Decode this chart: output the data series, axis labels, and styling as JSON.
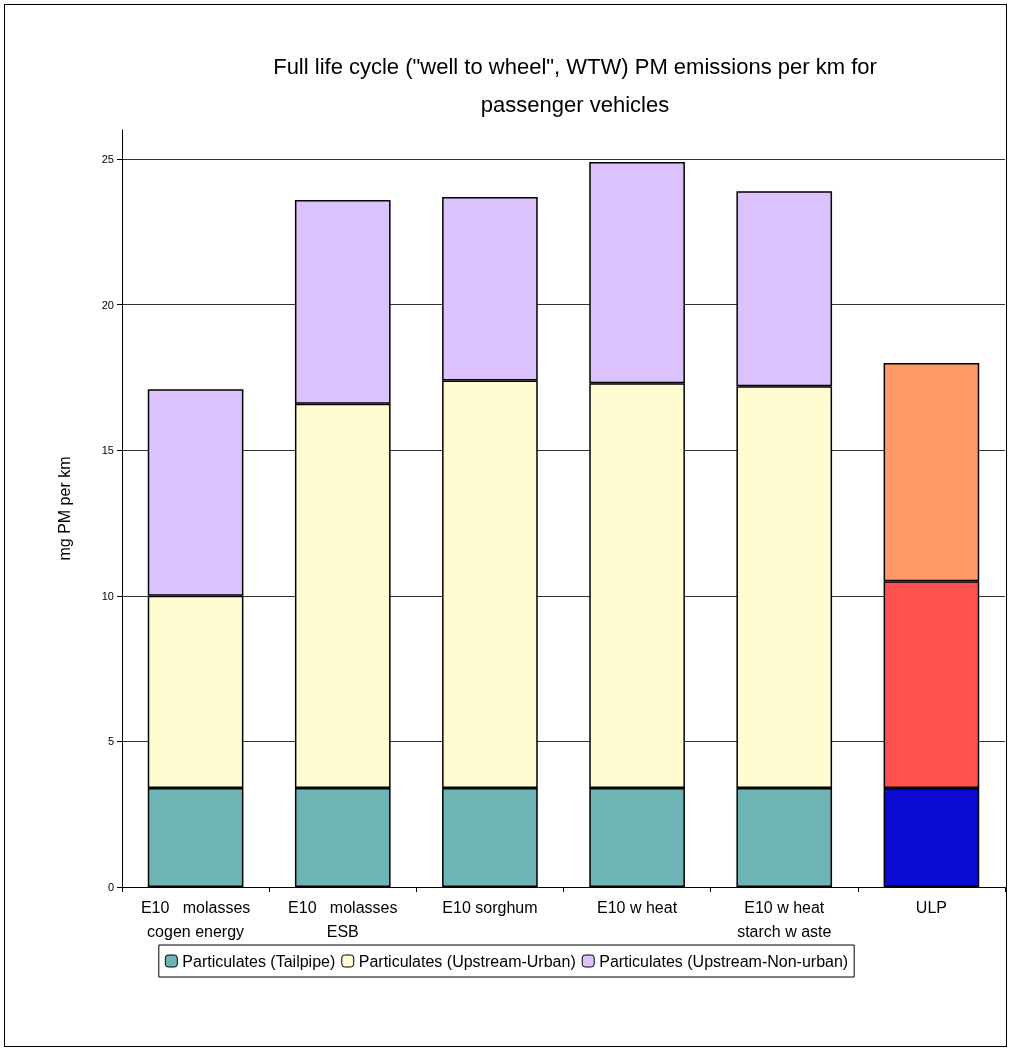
{
  "chart_data": {
    "type": "bar",
    "stacked": true,
    "title": "Full life cycle (\"well to wheel\", WTW) PM emissions per km for passenger vehicles",
    "ylabel": "mg PM per km",
    "categories": [
      "E10   molasses cogen energy",
      "E10   molasses ESB",
      "E10 sorghum",
      "E10 w heat",
      "E10 w heat starch w aste",
      "ULP"
    ],
    "series": [
      {
        "name": "Particulates (Tailpipe)",
        "color": "#6fb4b4",
        "colors": [
          "#6fb4b4",
          "#6fb4b4",
          "#6fb4b4",
          "#6fb4b4",
          "#6fb4b4",
          "#0a0ad0"
        ],
        "values": [
          3.4,
          3.4,
          3.4,
          3.4,
          3.4,
          3.4
        ]
      },
      {
        "name": "Particulates (Upstream-Urban)",
        "color": "#fefcd0",
        "colors": [
          "#fefcd0",
          "#fefcd0",
          "#fefcd0",
          "#fefcd0",
          "#fefcd0",
          "#ff5050"
        ],
        "values": [
          6.6,
          13.2,
          14.0,
          13.9,
          13.8,
          7.1
        ]
      },
      {
        "name": "Particulates (Upstream-Non-urban)",
        "color": "#dcc2fc",
        "colors": [
          "#dcc2fc",
          "#dcc2fc",
          "#dcc2fc",
          "#dcc2fc",
          "#dcc2fc",
          "#ff9a66"
        ],
        "values": [
          7.1,
          7.0,
          6.3,
          7.6,
          6.7,
          7.5
        ]
      }
    ],
    "ylim": [
      0,
      26
    ],
    "yticks": [
      0,
      5,
      10,
      15,
      20,
      25
    ],
    "grid": "y",
    "legend": "bottom"
  }
}
